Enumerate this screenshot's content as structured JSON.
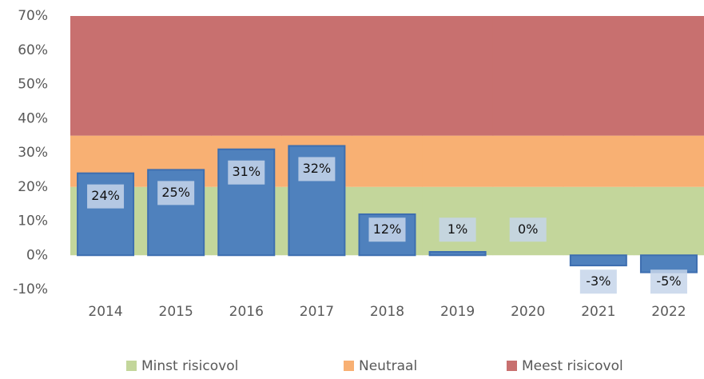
{
  "chart_data": {
    "type": "bar",
    "categories": [
      "2014",
      "2015",
      "2016",
      "2017",
      "2018",
      "2019",
      "2020",
      "2021",
      "2022"
    ],
    "values": [
      24,
      25,
      31,
      32,
      12,
      1,
      0,
      -3,
      -5
    ],
    "value_labels": [
      "24%",
      "25%",
      "31%",
      "32%",
      "12%",
      "1%",
      "0%",
      "-3%",
      "-5%"
    ],
    "color": "#4f81bd",
    "series": [
      {
        "name": "Minst risicovol",
        "color": "#c3d69b",
        "values": [
          20,
          20,
          20,
          20,
          20,
          20,
          20,
          20,
          20
        ]
      },
      {
        "name": "Neutraal",
        "color": "#f8b073",
        "values": [
          15,
          15,
          15,
          15,
          15,
          15,
          15,
          15,
          15
        ]
      },
      {
        "name": "Meest risicovol",
        "color": "#c8706f",
        "values": [
          35,
          35,
          35,
          35,
          35,
          35,
          35,
          35,
          35
        ]
      }
    ],
    "ylim": [
      -10,
      70
    ],
    "yticks": [
      {
        "value": -10,
        "label": "-10%"
      },
      {
        "value": 0,
        "label": "0%"
      },
      {
        "value": 10,
        "label": "10%"
      },
      {
        "value": 20,
        "label": "20%"
      },
      {
        "value": 30,
        "label": "30%"
      },
      {
        "value": 40,
        "label": "40%"
      },
      {
        "value": 50,
        "label": "50%"
      },
      {
        "value": 60,
        "label": "60%"
      },
      {
        "value": 70,
        "label": "70%"
      }
    ],
    "legend": "bottom"
  }
}
